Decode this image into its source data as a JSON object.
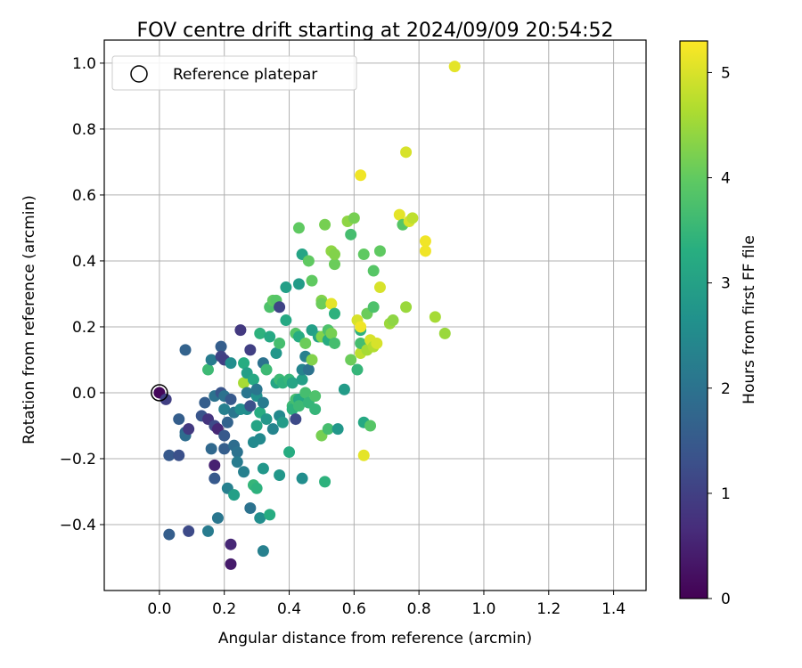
{
  "chart_data": {
    "type": "scatter",
    "title": "FOV centre drift starting at 2024/09/09 20:54:52",
    "xlabel": "Angular distance from reference (arcmin)",
    "ylabel": "Rotation from reference (arcmin)",
    "xlim": [
      -0.17,
      1.5
    ],
    "ylim": [
      -0.6,
      1.07
    ],
    "xticks": [
      0.0,
      0.2,
      0.4,
      0.6,
      0.8,
      1.0,
      1.2,
      1.4
    ],
    "yticks": [
      -0.4,
      -0.2,
      0.0,
      0.2,
      0.4,
      0.6,
      0.8,
      1.0
    ],
    "grid": true,
    "legend": {
      "position": "top-left",
      "entries": [
        "Reference platepar"
      ]
    },
    "reference_point": {
      "x": 0.0,
      "y": 0.0
    },
    "colorbar": {
      "label": "Hours from first FF file",
      "colormap": "viridis",
      "range": [
        0,
        5.3
      ],
      "ticks": [
        0,
        1,
        2,
        3,
        4,
        5
      ]
    },
    "points": [
      {
        "x": 0.0,
        "y": 0.0,
        "c": 0.1
      },
      {
        "x": 0.02,
        "y": -0.02,
        "c": 1.0
      },
      {
        "x": 0.03,
        "y": -0.19,
        "c": 1.5
      },
      {
        "x": 0.03,
        "y": -0.43,
        "c": 1.6
      },
      {
        "x": 0.06,
        "y": -0.19,
        "c": 1.3
      },
      {
        "x": 0.06,
        "y": -0.08,
        "c": 1.6
      },
      {
        "x": 0.08,
        "y": -0.12,
        "c": 1.8
      },
      {
        "x": 0.08,
        "y": -0.13,
        "c": 1.9
      },
      {
        "x": 0.08,
        "y": 0.13,
        "c": 1.7
      },
      {
        "x": 0.09,
        "y": -0.11,
        "c": 0.9
      },
      {
        "x": 0.09,
        "y": -0.42,
        "c": 1.2
      },
      {
        "x": 0.13,
        "y": -0.07,
        "c": 1.4
      },
      {
        "x": 0.14,
        "y": -0.03,
        "c": 1.6
      },
      {
        "x": 0.15,
        "y": -0.08,
        "c": 0.8
      },
      {
        "x": 0.15,
        "y": 0.07,
        "c": 3.6
      },
      {
        "x": 0.15,
        "y": -0.42,
        "c": 2.2
      },
      {
        "x": 0.16,
        "y": -0.17,
        "c": 1.8
      },
      {
        "x": 0.16,
        "y": 0.1,
        "c": 2.2
      },
      {
        "x": 0.17,
        "y": -0.1,
        "c": 1.2
      },
      {
        "x": 0.17,
        "y": -0.01,
        "c": 2.0
      },
      {
        "x": 0.17,
        "y": -0.26,
        "c": 1.5
      },
      {
        "x": 0.17,
        "y": -0.22,
        "c": 0.5
      },
      {
        "x": 0.18,
        "y": -0.11,
        "c": 0.6
      },
      {
        "x": 0.18,
        "y": -0.38,
        "c": 2.1
      },
      {
        "x": 0.19,
        "y": 0.0,
        "c": 1.4
      },
      {
        "x": 0.19,
        "y": 0.14,
        "c": 1.6
      },
      {
        "x": 0.19,
        "y": 0.11,
        "c": 1.1
      },
      {
        "x": 0.2,
        "y": -0.01,
        "c": 2.0
      },
      {
        "x": 0.2,
        "y": -0.05,
        "c": 2.3
      },
      {
        "x": 0.2,
        "y": 0.1,
        "c": 1.0
      },
      {
        "x": 0.2,
        "y": -0.13,
        "c": 1.5
      },
      {
        "x": 0.2,
        "y": -0.17,
        "c": 1.6
      },
      {
        "x": 0.21,
        "y": -0.09,
        "c": 1.7
      },
      {
        "x": 0.21,
        "y": -0.29,
        "c": 2.3
      },
      {
        "x": 0.22,
        "y": -0.46,
        "c": 0.6
      },
      {
        "x": 0.22,
        "y": -0.52,
        "c": 0.4
      },
      {
        "x": 0.22,
        "y": -0.02,
        "c": 1.5
      },
      {
        "x": 0.22,
        "y": 0.09,
        "c": 2.6
      },
      {
        "x": 0.23,
        "y": -0.16,
        "c": 1.9
      },
      {
        "x": 0.23,
        "y": -0.06,
        "c": 2.1
      },
      {
        "x": 0.23,
        "y": -0.31,
        "c": 3.0
      },
      {
        "x": 0.24,
        "y": -0.18,
        "c": 2.0
      },
      {
        "x": 0.24,
        "y": -0.21,
        "c": 2.2
      },
      {
        "x": 0.25,
        "y": 0.19,
        "c": 0.9
      },
      {
        "x": 0.25,
        "y": -0.05,
        "c": 2.6
      },
      {
        "x": 0.26,
        "y": 0.03,
        "c": 4.6
      },
      {
        "x": 0.26,
        "y": 0.09,
        "c": 3.3
      },
      {
        "x": 0.26,
        "y": -0.24,
        "c": 2.3
      },
      {
        "x": 0.27,
        "y": 0.0,
        "c": 2.1
      },
      {
        "x": 0.27,
        "y": -0.05,
        "c": 2.6
      },
      {
        "x": 0.27,
        "y": 0.06,
        "c": 3.0
      },
      {
        "x": 0.28,
        "y": 0.13,
        "c": 1.0
      },
      {
        "x": 0.28,
        "y": -0.04,
        "c": 1.3
      },
      {
        "x": 0.28,
        "y": -0.35,
        "c": 2.0
      },
      {
        "x": 0.29,
        "y": -0.15,
        "c": 2.5
      },
      {
        "x": 0.29,
        "y": 0.04,
        "c": 3.2
      },
      {
        "x": 0.29,
        "y": -0.28,
        "c": 3.5
      },
      {
        "x": 0.3,
        "y": -0.29,
        "c": 3.4
      },
      {
        "x": 0.3,
        "y": -0.01,
        "c": 2.7
      },
      {
        "x": 0.3,
        "y": -0.1,
        "c": 3.1
      },
      {
        "x": 0.3,
        "y": 0.01,
        "c": 2.1
      },
      {
        "x": 0.31,
        "y": -0.38,
        "c": 2.6
      },
      {
        "x": 0.31,
        "y": -0.06,
        "c": 3.3
      },
      {
        "x": 0.31,
        "y": 0.18,
        "c": 3.4
      },
      {
        "x": 0.31,
        "y": -0.14,
        "c": 2.5
      },
      {
        "x": 0.32,
        "y": -0.23,
        "c": 2.8
      },
      {
        "x": 0.32,
        "y": -0.48,
        "c": 2.3
      },
      {
        "x": 0.32,
        "y": 0.09,
        "c": 2.0
      },
      {
        "x": 0.32,
        "y": -0.03,
        "c": 2.2
      },
      {
        "x": 0.33,
        "y": 0.07,
        "c": 3.6
      },
      {
        "x": 0.33,
        "y": -0.08,
        "c": 2.8
      },
      {
        "x": 0.34,
        "y": 0.17,
        "c": 3.2
      },
      {
        "x": 0.34,
        "y": -0.37,
        "c": 3.3
      },
      {
        "x": 0.34,
        "y": 0.26,
        "c": 3.8
      },
      {
        "x": 0.35,
        "y": 0.28,
        "c": 4.0
      },
      {
        "x": 0.35,
        "y": -0.11,
        "c": 2.4
      },
      {
        "x": 0.36,
        "y": 0.12,
        "c": 2.8
      },
      {
        "x": 0.36,
        "y": 0.28,
        "c": 3.9
      },
      {
        "x": 0.36,
        "y": 0.03,
        "c": 3.1
      },
      {
        "x": 0.37,
        "y": -0.07,
        "c": 2.5
      },
      {
        "x": 0.37,
        "y": 0.26,
        "c": 1.1
      },
      {
        "x": 0.37,
        "y": 0.04,
        "c": 3.6
      },
      {
        "x": 0.37,
        "y": 0.15,
        "c": 3.7
      },
      {
        "x": 0.37,
        "y": -0.25,
        "c": 2.8
      },
      {
        "x": 0.38,
        "y": 0.03,
        "c": 3.4
      },
      {
        "x": 0.38,
        "y": -0.09,
        "c": 2.9
      },
      {
        "x": 0.39,
        "y": 0.32,
        "c": 3.0
      },
      {
        "x": 0.39,
        "y": 0.22,
        "c": 3.2
      },
      {
        "x": 0.4,
        "y": -0.18,
        "c": 3.3
      },
      {
        "x": 0.4,
        "y": 0.04,
        "c": 3.5
      },
      {
        "x": 0.41,
        "y": -0.04,
        "c": 3.6
      },
      {
        "x": 0.41,
        "y": 0.03,
        "c": 3.1
      },
      {
        "x": 0.41,
        "y": -0.05,
        "c": 3.4
      },
      {
        "x": 0.42,
        "y": -0.02,
        "c": 3.7
      },
      {
        "x": 0.42,
        "y": -0.08,
        "c": 1.2
      },
      {
        "x": 0.42,
        "y": 0.18,
        "c": 3.9
      },
      {
        "x": 0.43,
        "y": 0.33,
        "c": 2.9
      },
      {
        "x": 0.43,
        "y": 0.17,
        "c": 3.3
      },
      {
        "x": 0.43,
        "y": 0.5,
        "c": 4.0
      },
      {
        "x": 0.43,
        "y": -0.02,
        "c": 3.2
      },
      {
        "x": 0.43,
        "y": -0.04,
        "c": 3.6
      },
      {
        "x": 0.44,
        "y": 0.42,
        "c": 3.1
      },
      {
        "x": 0.44,
        "y": 0.04,
        "c": 3.0
      },
      {
        "x": 0.44,
        "y": 0.07,
        "c": 2.4
      },
      {
        "x": 0.44,
        "y": -0.26,
        "c": 2.6
      },
      {
        "x": 0.45,
        "y": 0.15,
        "c": 4.1
      },
      {
        "x": 0.45,
        "y": 0.0,
        "c": 3.7
      },
      {
        "x": 0.45,
        "y": 0.11,
        "c": 2.3
      },
      {
        "x": 0.46,
        "y": 0.4,
        "c": 4.0
      },
      {
        "x": 0.46,
        "y": -0.03,
        "c": 3.5
      },
      {
        "x": 0.46,
        "y": 0.07,
        "c": 2.0
      },
      {
        "x": 0.47,
        "y": 0.34,
        "c": 4.0
      },
      {
        "x": 0.47,
        "y": 0.1,
        "c": 4.3
      },
      {
        "x": 0.47,
        "y": 0.19,
        "c": 3.0
      },
      {
        "x": 0.48,
        "y": -0.05,
        "c": 3.5
      },
      {
        "x": 0.48,
        "y": -0.01,
        "c": 3.8
      },
      {
        "x": 0.49,
        "y": 0.17,
        "c": 3.1
      },
      {
        "x": 0.5,
        "y": 0.28,
        "c": 4.3
      },
      {
        "x": 0.5,
        "y": 0.27,
        "c": 4.1
      },
      {
        "x": 0.5,
        "y": -0.13,
        "c": 4.2
      },
      {
        "x": 0.5,
        "y": 0.17,
        "c": 4.3
      },
      {
        "x": 0.51,
        "y": 0.51,
        "c": 4.2
      },
      {
        "x": 0.51,
        "y": -0.27,
        "c": 3.4
      },
      {
        "x": 0.52,
        "y": 0.19,
        "c": 3.8
      },
      {
        "x": 0.52,
        "y": -0.11,
        "c": 3.7
      },
      {
        "x": 0.52,
        "y": 0.16,
        "c": 3.3
      },
      {
        "x": 0.53,
        "y": 0.43,
        "c": 4.4
      },
      {
        "x": 0.53,
        "y": 0.27,
        "c": 5.1
      },
      {
        "x": 0.53,
        "y": 0.18,
        "c": 4.2
      },
      {
        "x": 0.54,
        "y": 0.39,
        "c": 4.1
      },
      {
        "x": 0.54,
        "y": 0.42,
        "c": 4.3
      },
      {
        "x": 0.54,
        "y": 0.24,
        "c": 3.4
      },
      {
        "x": 0.54,
        "y": 0.15,
        "c": 3.7
      },
      {
        "x": 0.55,
        "y": -0.11,
        "c": 2.8
      },
      {
        "x": 0.57,
        "y": 0.01,
        "c": 2.9
      },
      {
        "x": 0.58,
        "y": 0.52,
        "c": 4.4
      },
      {
        "x": 0.59,
        "y": 0.48,
        "c": 3.7
      },
      {
        "x": 0.59,
        "y": 0.1,
        "c": 4.1
      },
      {
        "x": 0.6,
        "y": 0.53,
        "c": 4.2
      },
      {
        "x": 0.61,
        "y": 0.22,
        "c": 5.0
      },
      {
        "x": 0.61,
        "y": 0.07,
        "c": 3.5
      },
      {
        "x": 0.62,
        "y": 0.66,
        "c": 5.2
      },
      {
        "x": 0.62,
        "y": 0.19,
        "c": 3.4
      },
      {
        "x": 0.62,
        "y": 0.12,
        "c": 4.8
      },
      {
        "x": 0.62,
        "y": 0.15,
        "c": 3.7
      },
      {
        "x": 0.62,
        "y": 0.2,
        "c": 5.2
      },
      {
        "x": 0.63,
        "y": 0.42,
        "c": 4.0
      },
      {
        "x": 0.63,
        "y": -0.19,
        "c": 5.1
      },
      {
        "x": 0.63,
        "y": -0.09,
        "c": 3.2
      },
      {
        "x": 0.64,
        "y": 0.24,
        "c": 4.1
      },
      {
        "x": 0.64,
        "y": 0.13,
        "c": 4.6
      },
      {
        "x": 0.65,
        "y": -0.1,
        "c": 3.9
      },
      {
        "x": 0.65,
        "y": 0.16,
        "c": 5.0
      },
      {
        "x": 0.66,
        "y": 0.14,
        "c": 4.7
      },
      {
        "x": 0.66,
        "y": 0.37,
        "c": 3.9
      },
      {
        "x": 0.66,
        "y": 0.26,
        "c": 3.8
      },
      {
        "x": 0.67,
        "y": 0.15,
        "c": 5.0
      },
      {
        "x": 0.68,
        "y": 0.43,
        "c": 4.0
      },
      {
        "x": 0.68,
        "y": 0.32,
        "c": 5.0
      },
      {
        "x": 0.71,
        "y": 0.21,
        "c": 4.5
      },
      {
        "x": 0.72,
        "y": 0.22,
        "c": 4.4
      },
      {
        "x": 0.74,
        "y": 0.54,
        "c": 5.1
      },
      {
        "x": 0.75,
        "y": 0.51,
        "c": 3.9
      },
      {
        "x": 0.76,
        "y": 0.26,
        "c": 4.5
      },
      {
        "x": 0.76,
        "y": 0.73,
        "c": 5.0
      },
      {
        "x": 0.77,
        "y": 0.52,
        "c": 5.0
      },
      {
        "x": 0.78,
        "y": 0.53,
        "c": 4.8
      },
      {
        "x": 0.82,
        "y": 0.46,
        "c": 5.2
      },
      {
        "x": 0.82,
        "y": 0.43,
        "c": 5.2
      },
      {
        "x": 0.85,
        "y": 0.23,
        "c": 4.6
      },
      {
        "x": 0.88,
        "y": 0.18,
        "c": 4.5
      },
      {
        "x": 0.91,
        "y": 0.99,
        "c": 5.1
      }
    ]
  }
}
